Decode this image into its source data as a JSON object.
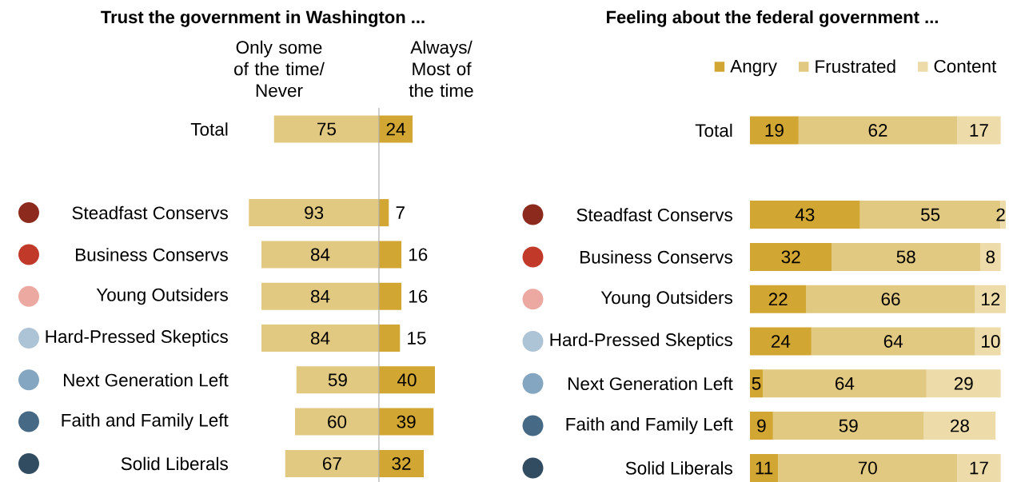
{
  "chart_data": [
    {
      "type": "bar",
      "orientation": "horizontal",
      "title": "Trust the government in Washington ...",
      "tick_labels": "y",
      "data_labels": true,
      "xlim": [
        93,
        0
      ],
      "categories": [
        "Total",
        null,
        "Steadfast Conservs",
        "Business Conservs",
        "Young Outsiders",
        "Hard-Pressed Skeptics",
        "Next Generation Left",
        "Faith and Family Left",
        "Solid Liberals"
      ],
      "series": [
        {
          "name": "Only some of the time/ Never",
          "color": "#e2c982",
          "values": [
            75,
            null,
            93,
            84,
            84,
            84,
            59,
            60,
            67
          ]
        }
      ]
    },
    {
      "type": "bar",
      "orientation": "horizontal",
      "tick_labels": false,
      "data_labels": true,
      "categories": [
        null,
        null,
        null,
        null,
        null,
        null,
        null,
        null,
        null
      ],
      "series": [
        {
          "name": "Always/ Most of the time",
          "color": "#d1a632",
          "values": [
            24,
            null,
            7,
            16,
            16,
            15,
            40,
            39,
            32
          ]
        }
      ]
    },
    {
      "type": "bar",
      "orientation": "horizontal",
      "stacked": true,
      "title": "Feeling about the federal government ...",
      "tick_labels": "y",
      "data_labels": true,
      "legend": "top",
      "categories": [
        "Total",
        null,
        "Steadfast Conservs",
        "Business Conservs",
        "Young Outsiders",
        "Hard-Pressed Skeptics",
        "Next Generation Left",
        "Faith and Family Left",
        "Solid Liberals"
      ],
      "series": [
        {
          "name": "Angry",
          "color": "#d1a632",
          "values": [
            19,
            null,
            43,
            32,
            22,
            24,
            5,
            9,
            11
          ]
        },
        {
          "name": "Frustrated",
          "color": "#e2c982",
          "values": [
            62,
            null,
            55,
            58,
            66,
            64,
            64,
            59,
            70
          ]
        },
        {
          "name": "Content",
          "color": "#eddcaa",
          "values": [
            17,
            null,
            2,
            8,
            12,
            10,
            29,
            28,
            17
          ]
        }
      ]
    }
  ]
}
